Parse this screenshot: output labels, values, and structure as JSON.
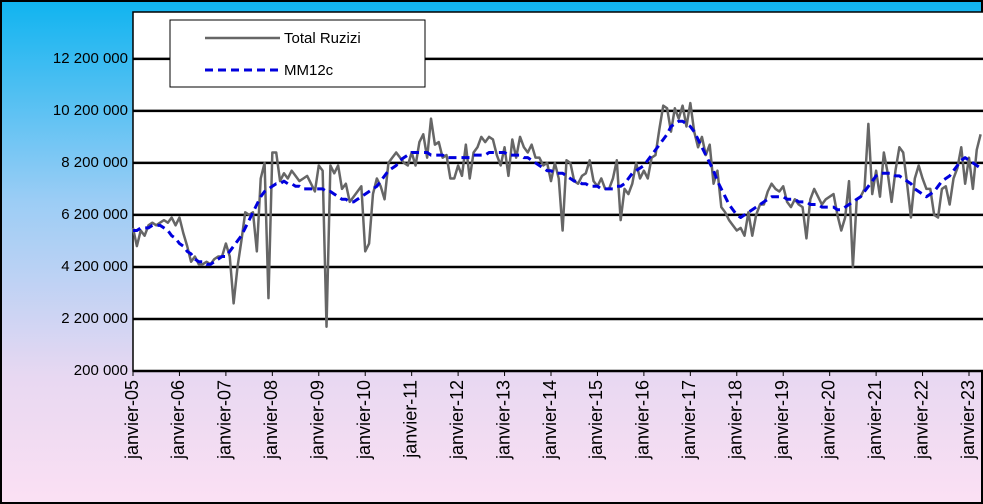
{
  "chart_data": {
    "type": "line",
    "categories": [
      "janvier-05",
      null,
      null,
      null,
      null,
      null,
      null,
      null,
      null,
      null,
      null,
      null,
      "janvier-06",
      null,
      null,
      null,
      null,
      null,
      null,
      null,
      null,
      null,
      null,
      null,
      "janvier-07",
      null,
      null,
      null,
      null,
      null,
      null,
      null,
      null,
      null,
      null,
      null,
      "janvier-08",
      null,
      null,
      null,
      null,
      null,
      null,
      null,
      null,
      null,
      null,
      null,
      "janvier-09",
      null,
      null,
      null,
      null,
      null,
      null,
      null,
      null,
      null,
      null,
      null,
      "janvier-10",
      null,
      null,
      null,
      null,
      null,
      null,
      null,
      null,
      null,
      null,
      null,
      "janvier-11",
      null,
      null,
      null,
      null,
      null,
      null,
      null,
      null,
      null,
      null,
      null,
      "janvier-12",
      null,
      null,
      null,
      null,
      null,
      null,
      null,
      null,
      null,
      null,
      null,
      "janvier-13",
      null,
      null,
      null,
      null,
      null,
      null,
      null,
      null,
      null,
      null,
      null,
      "janvier-14",
      null,
      null,
      null,
      null,
      null,
      null,
      null,
      null,
      null,
      null,
      null,
      "janvier-15",
      null,
      null,
      null,
      null,
      null,
      null,
      null,
      null,
      null,
      null,
      null,
      "janvier-16",
      null,
      null,
      null,
      null,
      null,
      null,
      null,
      null,
      null,
      null,
      null,
      "janvier-17",
      null,
      null,
      null,
      null,
      null,
      null,
      null,
      null,
      null,
      null,
      null,
      "janvier-18",
      null,
      null,
      null,
      null,
      null,
      null,
      null,
      null,
      null,
      null,
      null,
      "janvier-19",
      null,
      null,
      null,
      null,
      null,
      null,
      null,
      null,
      null,
      null,
      null,
      "janvier-20",
      null,
      null,
      null,
      null,
      null,
      null,
      null,
      null,
      null,
      null,
      null,
      "janvier-21",
      null,
      null,
      null,
      null,
      null,
      null,
      null,
      null,
      null,
      null,
      null,
      "janvier-22",
      null,
      null,
      null,
      null,
      null,
      null,
      null,
      null,
      null,
      null,
      null,
      "janvier-23",
      null,
      null,
      null
    ],
    "series": [
      {
        "name": "Total Ruzizi",
        "color": "#666666",
        "dashed": false,
        "values": [
          5700000,
          5000000,
          5600000,
          5400000,
          5800000,
          5900000,
          5800000,
          5900000,
          6000000,
          5900000,
          6100000,
          5800000,
          6100000,
          5500000,
          5000000,
          4400000,
          4600000,
          4300000,
          4300000,
          4400000,
          4300000,
          4500000,
          4600000,
          4600000,
          5100000,
          4600000,
          2800000,
          4200000,
          5200000,
          6300000,
          6200000,
          6300000,
          4800000,
          7600000,
          8200000,
          3000000,
          8600000,
          8600000,
          7500000,
          7800000,
          7600000,
          7900000,
          7700000,
          7500000,
          7600000,
          7700000,
          7400000,
          7100000,
          8100000,
          7900000,
          1900000,
          8100000,
          7800000,
          8100000,
          7200000,
          7400000,
          6700000,
          6900000,
          7100000,
          7300000,
          4800000,
          5100000,
          7000000,
          7600000,
          7300000,
          6800000,
          8200000,
          8400000,
          8600000,
          8400000,
          8200000,
          8100000,
          8600000,
          8100000,
          9000000,
          9300000,
          8400000,
          9900000,
          8900000,
          9000000,
          8400000,
          8500000,
          7600000,
          7600000,
          8100000,
          7700000,
          8900000,
          7600000,
          8600000,
          8800000,
          9200000,
          9000000,
          9200000,
          9100000,
          8500000,
          8100000,
          8800000,
          7700000,
          9100000,
          8400000,
          9200000,
          8800000,
          8600000,
          8900000,
          8400000,
          8400000,
          8100000,
          8200000,
          7500000,
          8200000,
          7600000,
          5600000,
          8300000,
          8200000,
          7500000,
          7400000,
          7700000,
          7800000,
          8300000,
          7500000,
          7300000,
          7600000,
          7200000,
          7200000,
          7600000,
          8300000,
          6000000,
          7200000,
          7000000,
          7400000,
          8200000,
          7600000,
          7900000,
          7600000,
          8400000,
          8500000,
          9500000,
          10400000,
          10300000,
          9400000,
          10300000,
          9900000,
          10400000,
          9600000,
          10500000,
          9400000,
          8800000,
          9200000,
          8500000,
          8900000,
          7400000,
          7900000,
          6500000,
          6300000,
          6000000,
          5800000,
          5600000,
          5700000,
          5400000,
          6300000,
          5400000,
          6200000,
          6600000,
          6600000,
          7100000,
          7400000,
          7200000,
          7100000,
          7300000,
          6700000,
          6500000,
          6800000,
          6600000,
          6500000,
          5300000,
          6800000,
          7200000,
          6900000,
          6600000,
          6800000,
          6900000,
          7000000,
          6200000,
          5600000,
          6100000,
          7500000,
          4200000,
          6800000,
          6900000,
          7200000,
          9700000,
          7000000,
          7900000,
          6900000,
          8600000,
          7800000,
          6700000,
          7900000,
          8800000,
          8600000,
          7400000,
          6100000,
          7600000,
          8100000,
          7600000,
          7200000,
          7200000,
          6200000,
          6100000,
          7200000,
          7300000,
          6600000,
          7600000,
          8000000,
          8800000,
          7400000,
          8400000,
          7200000,
          8700000,
          9300000
        ]
      },
      {
        "name": "MM12c",
        "color": "#0000dd",
        "dashed": true,
        "values": [
          5600000,
          5600000,
          5700000,
          5700000,
          5700000,
          5800000,
          5800000,
          5800000,
          5700000,
          5600000,
          5400000,
          5300000,
          5100000,
          5000000,
          4800000,
          4700000,
          4500000,
          4400000,
          4400000,
          4300000,
          4300000,
          4400000,
          4500000,
          4600000,
          4600000,
          4800000,
          5000000,
          5200000,
          5400000,
          5700000,
          6000000,
          6300000,
          6600000,
          6900000,
          7100000,
          7200000,
          7300000,
          7400000,
          7400000,
          7500000,
          7400000,
          7400000,
          7300000,
          7300000,
          7200000,
          7200000,
          7200000,
          7200000,
          7200000,
          7200000,
          7100000,
          7100000,
          7000000,
          6900000,
          6800000,
          6800000,
          6700000,
          6700000,
          6800000,
          6900000,
          7000000,
          7100000,
          7200000,
          7300000,
          7500000,
          7700000,
          7900000,
          8000000,
          8100000,
          8300000,
          8400000,
          8500000,
          8600000,
          8600000,
          8600000,
          8600000,
          8600000,
          8500000,
          8500000,
          8500000,
          8500000,
          8400000,
          8400000,
          8400000,
          8400000,
          8400000,
          8400000,
          8400000,
          8500000,
          8500000,
          8500000,
          8500000,
          8600000,
          8600000,
          8600000,
          8600000,
          8600000,
          8500000,
          8500000,
          8500000,
          8500000,
          8400000,
          8400000,
          8300000,
          8200000,
          8100000,
          8000000,
          7900000,
          7900000,
          7800000,
          7800000,
          7800000,
          7700000,
          7600000,
          7500000,
          7500000,
          7400000,
          7400000,
          7300000,
          7300000,
          7300000,
          7200000,
          7200000,
          7200000,
          7200000,
          7300000,
          7300000,
          7400000,
          7600000,
          7800000,
          7900000,
          8000000,
          8100000,
          8300000,
          8500000,
          8700000,
          8900000,
          9100000,
          9300000,
          9600000,
          9700000,
          9800000,
          9800000,
          9700000,
          9600000,
          9400000,
          9100000,
          8800000,
          8500000,
          8200000,
          7900000,
          7500000,
          7200000,
          6900000,
          6600000,
          6400000,
          6200000,
          6100000,
          6200000,
          6300000,
          6400000,
          6500000,
          6600000,
          6700000,
          6800000,
          6900000,
          6900000,
          6900000,
          6900000,
          6800000,
          6800000,
          6800000,
          6700000,
          6700000,
          6700000,
          6600000,
          6600000,
          6600000,
          6500000,
          6500000,
          6500000,
          6500000,
          6400000,
          6400000,
          6500000,
          6600000,
          6700000,
          6800000,
          6900000,
          7100000,
          7300000,
          7500000,
          7700000,
          7800000,
          7800000,
          7800000,
          7800000,
          7700000,
          7700000,
          7600000,
          7500000,
          7400000,
          7200000,
          7100000,
          7000000,
          6900000,
          7000000,
          7100000,
          7300000,
          7500000,
          7600000,
          7700000,
          7900000,
          8100000,
          8300000,
          8400000,
          8300000,
          8200000,
          8100000,
          8000000
        ]
      }
    ],
    "ylim": [
      200000,
      14000000
    ],
    "yticks": [
      {
        "value": 200000,
        "label": "200 000"
      },
      {
        "value": 2200000,
        "label": "2 200 000"
      },
      {
        "value": 4200000,
        "label": "4 200 000"
      },
      {
        "value": 6200000,
        "label": "6 200 000"
      },
      {
        "value": 8200000,
        "label": "8 200 000"
      },
      {
        "value": 10200000,
        "label": "10 200 000"
      },
      {
        "value": 12200000,
        "label": "12 200 000"
      }
    ],
    "grid": true
  }
}
